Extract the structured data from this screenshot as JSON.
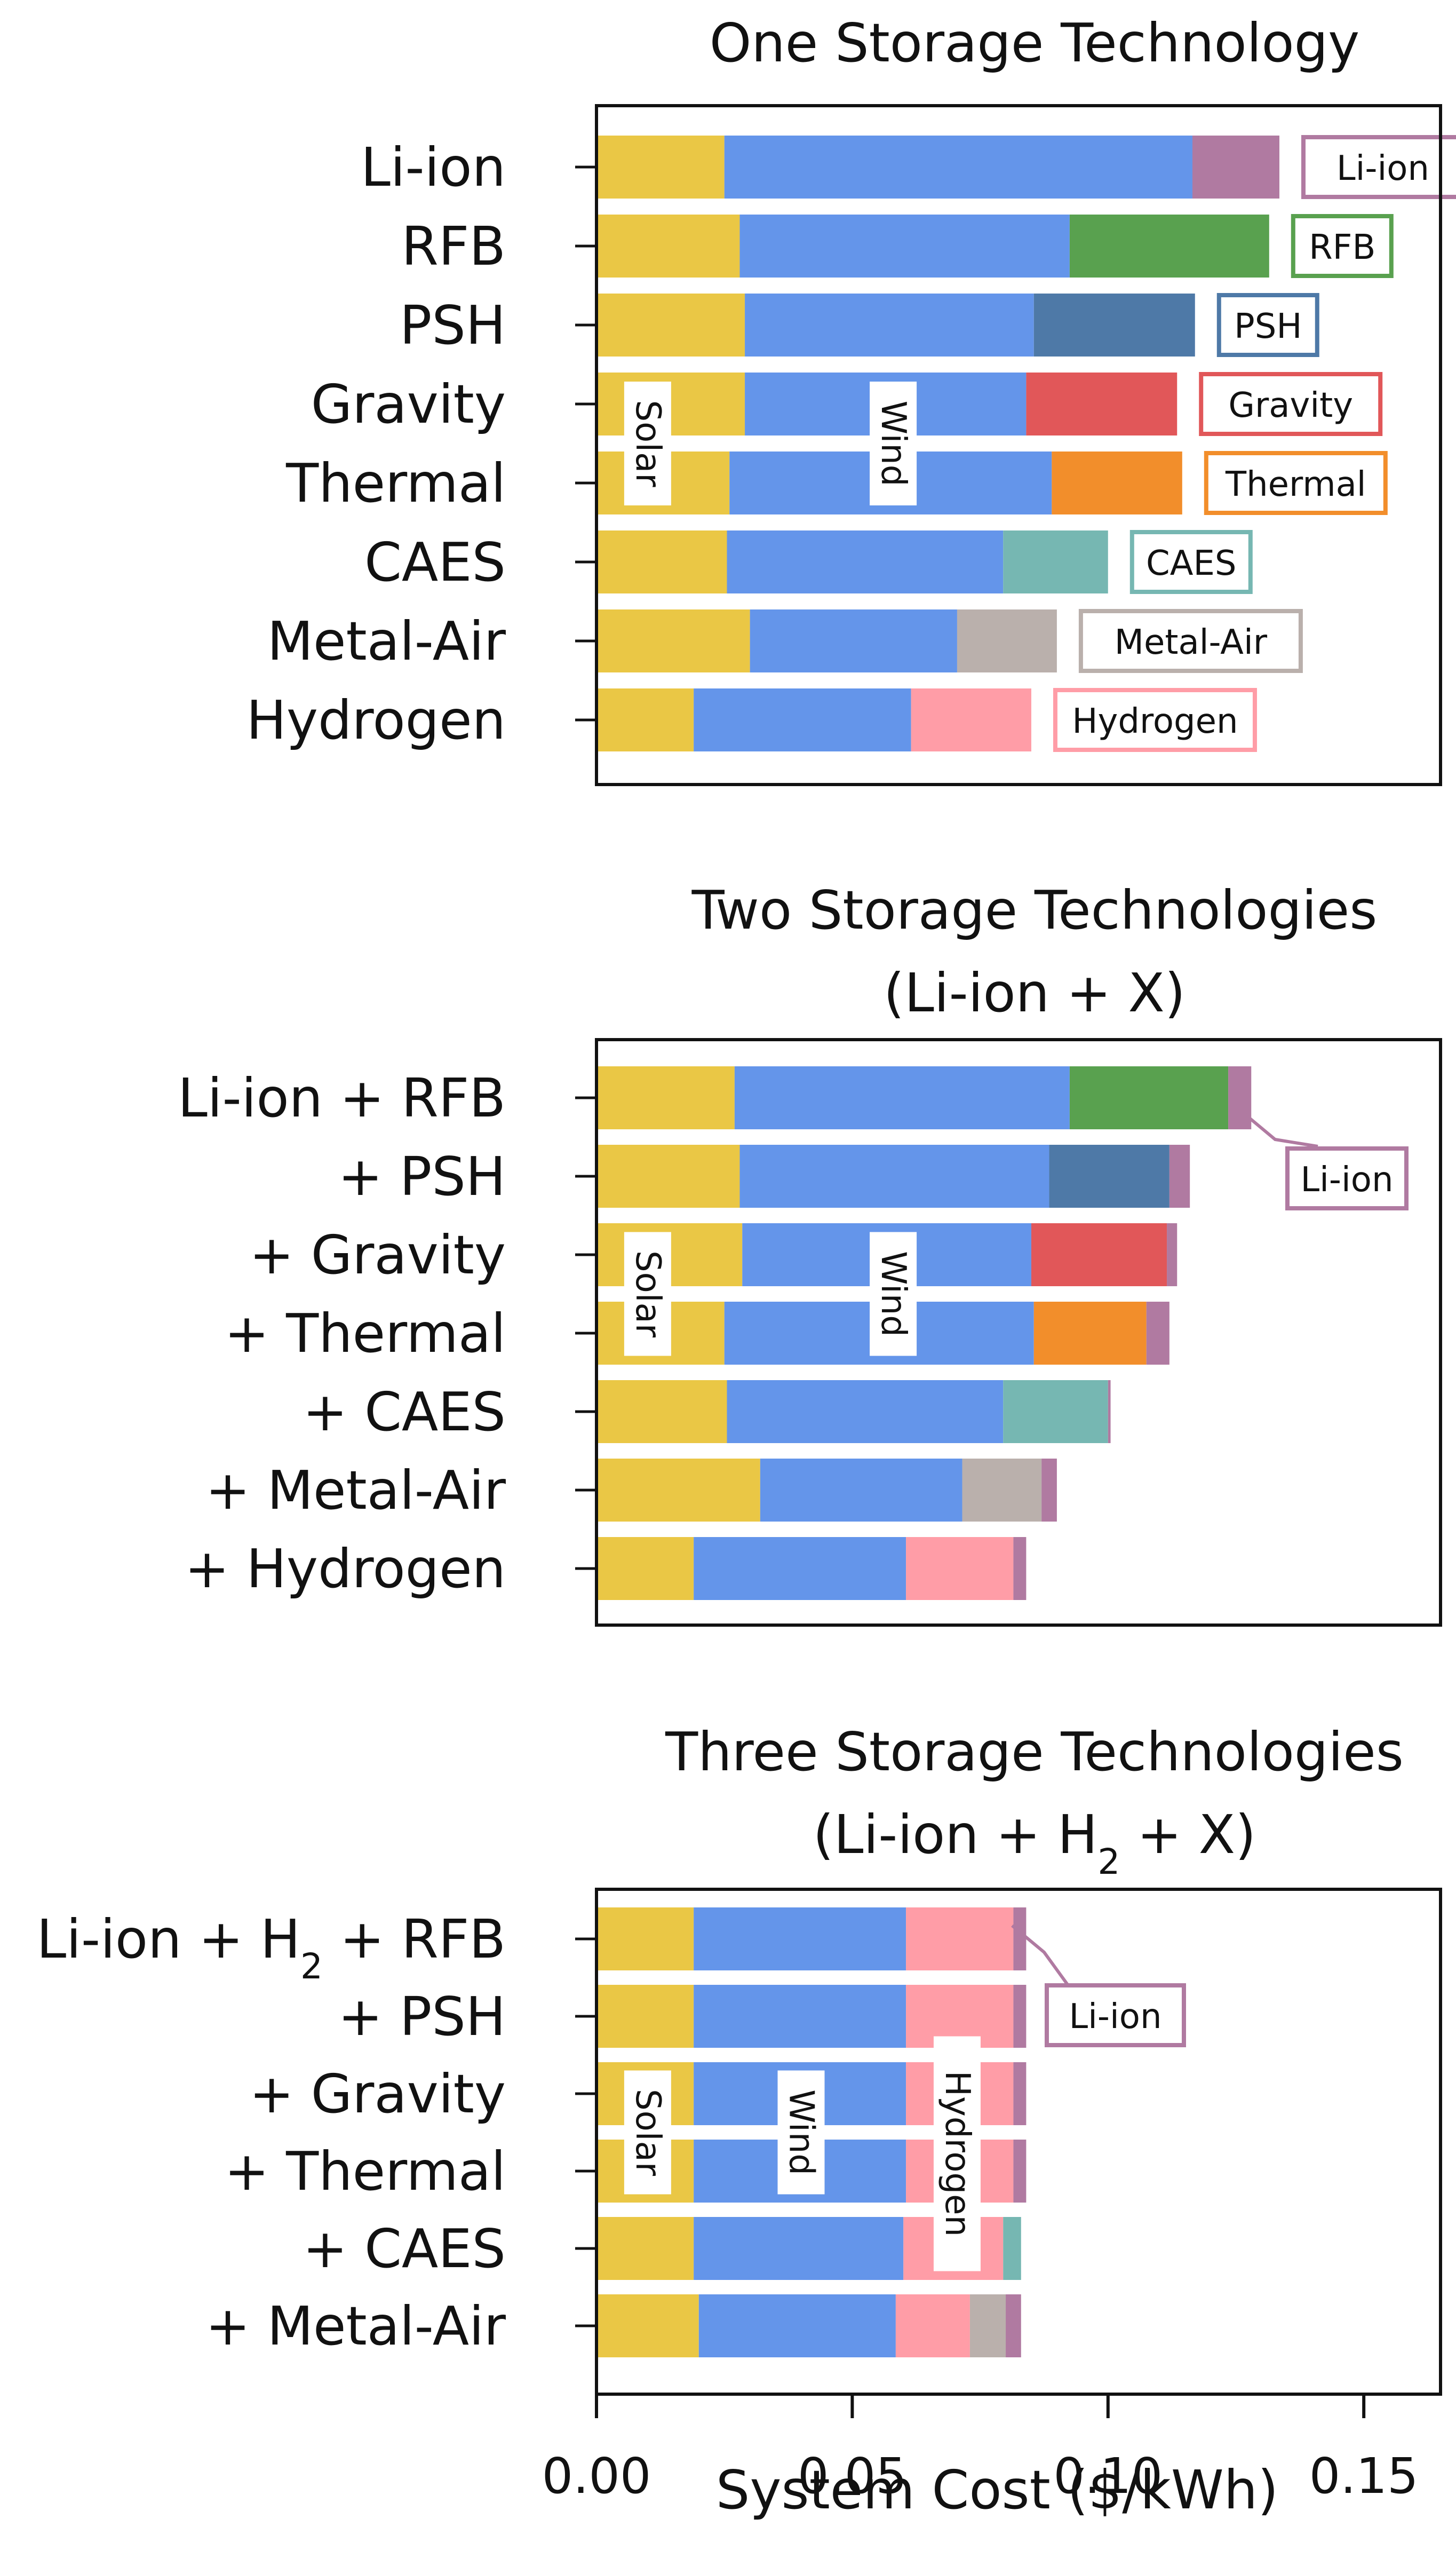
{
  "chart_data": [
    {
      "type": "bar",
      "orientation": "horizontal",
      "stacked": true,
      "title": "One Storage Technology",
      "categories": [
        "Li-ion",
        "RFB",
        "PSH",
        "Gravity",
        "Thermal",
        "CAES",
        "Metal-Air",
        "Hydrogen"
      ],
      "segments": [
        {
          "category": "Li-ion",
          "parts": [
            {
              "name": "Solar",
              "value": 0.025
            },
            {
              "name": "Wind",
              "value": 0.0915
            },
            {
              "name": "Li-ion",
              "value": 0.017
            }
          ]
        },
        {
          "category": "RFB",
          "parts": [
            {
              "name": "Solar",
              "value": 0.028
            },
            {
              "name": "Wind",
              "value": 0.0645
            },
            {
              "name": "RFB",
              "value": 0.039
            }
          ]
        },
        {
          "category": "PSH",
          "parts": [
            {
              "name": "Solar",
              "value": 0.029
            },
            {
              "name": "Wind",
              "value": 0.0565
            },
            {
              "name": "PSH",
              "value": 0.0315
            }
          ]
        },
        {
          "category": "Gravity",
          "parts": [
            {
              "name": "Solar",
              "value": 0.029
            },
            {
              "name": "Wind",
              "value": 0.055
            },
            {
              "name": "Gravity",
              "value": 0.0295
            }
          ]
        },
        {
          "category": "Thermal",
          "parts": [
            {
              "name": "Solar",
              "value": 0.026
            },
            {
              "name": "Wind",
              "value": 0.063
            },
            {
              "name": "Thermal",
              "value": 0.0255
            }
          ]
        },
        {
          "category": "CAES",
          "parts": [
            {
              "name": "Solar",
              "value": 0.0255
            },
            {
              "name": "Wind",
              "value": 0.054
            },
            {
              "name": "CAES",
              "value": 0.0205
            }
          ]
        },
        {
          "category": "Metal-Air",
          "parts": [
            {
              "name": "Solar",
              "value": 0.03
            },
            {
              "name": "Wind",
              "value": 0.0405
            },
            {
              "name": "Metal-Air",
              "value": 0.0195
            }
          ]
        },
        {
          "category": "Hydrogen",
          "parts": [
            {
              "name": "Solar",
              "value": 0.019
            },
            {
              "name": "Wind",
              "value": 0.0425
            },
            {
              "name": "Hydrogen",
              "value": 0.0235
            }
          ]
        }
      ],
      "tags": [
        "Li-ion",
        "RFB",
        "PSH",
        "Gravity",
        "Thermal",
        "CAES",
        "Metal-Air",
        "Hydrogen"
      ],
      "inbar_labels": [
        "Solar",
        "Wind"
      ]
    },
    {
      "type": "bar",
      "orientation": "horizontal",
      "stacked": true,
      "title": "Two Storage Technologies",
      "subtitle": "(Li-ion + X)",
      "categories": [
        "Li-ion + RFB",
        "+ PSH",
        "+ Gravity",
        "+ Thermal",
        "+ CAES",
        "+ Metal-Air",
        "+ Hydrogen"
      ],
      "segments": [
        {
          "category": "Li-ion + RFB",
          "parts": [
            {
              "name": "Solar",
              "value": 0.027
            },
            {
              "name": "Wind",
              "value": 0.0655
            },
            {
              "name": "RFB",
              "value": 0.031
            },
            {
              "name": "Li-ion",
              "value": 0.0045
            }
          ]
        },
        {
          "category": "+ PSH",
          "parts": [
            {
              "name": "Solar",
              "value": 0.028
            },
            {
              "name": "Wind",
              "value": 0.0605
            },
            {
              "name": "PSH",
              "value": 0.0235
            },
            {
              "name": "Li-ion",
              "value": 0.004
            }
          ]
        },
        {
          "category": "+ Gravity",
          "parts": [
            {
              "name": "Solar",
              "value": 0.0285
            },
            {
              "name": "Wind",
              "value": 0.0565
            },
            {
              "name": "Gravity",
              "value": 0.0265
            },
            {
              "name": "Li-ion",
              "value": 0.002
            }
          ]
        },
        {
          "category": "+ Thermal",
          "parts": [
            {
              "name": "Solar",
              "value": 0.025
            },
            {
              "name": "Wind",
              "value": 0.0605
            },
            {
              "name": "Thermal",
              "value": 0.022
            },
            {
              "name": "Li-ion",
              "value": 0.0045
            }
          ]
        },
        {
          "category": "+ CAES",
          "parts": [
            {
              "name": "Solar",
              "value": 0.0255
            },
            {
              "name": "Wind",
              "value": 0.054
            },
            {
              "name": "CAES",
              "value": 0.0205
            },
            {
              "name": "Li-ion",
              "value": 0.0005
            }
          ]
        },
        {
          "category": "+ Metal-Air",
          "parts": [
            {
              "name": "Solar",
              "value": 0.032
            },
            {
              "name": "Wind",
              "value": 0.0395
            },
            {
              "name": "Metal-Air",
              "value": 0.0155
            },
            {
              "name": "Li-ion",
              "value": 0.003
            }
          ]
        },
        {
          "category": "+ Hydrogen",
          "parts": [
            {
              "name": "Solar",
              "value": 0.019
            },
            {
              "name": "Wind",
              "value": 0.0415
            },
            {
              "name": "Hydrogen",
              "value": 0.021
            },
            {
              "name": "Li-ion",
              "value": 0.0025
            }
          ]
        }
      ],
      "callout": "Li-ion",
      "inbar_labels": [
        "Solar",
        "Wind"
      ]
    },
    {
      "type": "bar",
      "orientation": "horizontal",
      "stacked": true,
      "title": "Three Storage Technologies",
      "subtitle": "(Li-ion + H2 + X)",
      "categories": [
        "Li-ion + H2 + RFB",
        "+ PSH",
        "+ Gravity",
        "+ Thermal",
        "+ CAES",
        "+ Metal-Air"
      ],
      "segments": [
        {
          "category": "Li-ion + H2 + RFB",
          "parts": [
            {
              "name": "Solar",
              "value": 0.019
            },
            {
              "name": "Wind",
              "value": 0.0415
            },
            {
              "name": "Hydrogen",
              "value": 0.021
            },
            {
              "name": "RFB",
              "value": 0.0
            },
            {
              "name": "Li-ion",
              "value": 0.0025
            }
          ]
        },
        {
          "category": "+ PSH",
          "parts": [
            {
              "name": "Solar",
              "value": 0.019
            },
            {
              "name": "Wind",
              "value": 0.0415
            },
            {
              "name": "Hydrogen",
              "value": 0.021
            },
            {
              "name": "PSH",
              "value": 0.0
            },
            {
              "name": "Li-ion",
              "value": 0.0025
            }
          ]
        },
        {
          "category": "+ Gravity",
          "parts": [
            {
              "name": "Solar",
              "value": 0.019
            },
            {
              "name": "Wind",
              "value": 0.0415
            },
            {
              "name": "Hydrogen",
              "value": 0.021
            },
            {
              "name": "Gravity",
              "value": 0.0
            },
            {
              "name": "Li-ion",
              "value": 0.0025
            }
          ]
        },
        {
          "category": "+ Thermal",
          "parts": [
            {
              "name": "Solar",
              "value": 0.019
            },
            {
              "name": "Wind",
              "value": 0.0415
            },
            {
              "name": "Hydrogen",
              "value": 0.021
            },
            {
              "name": "Thermal",
              "value": 0.0
            },
            {
              "name": "Li-ion",
              "value": 0.0025
            }
          ]
        },
        {
          "category": "+ CAES",
          "parts": [
            {
              "name": "Solar",
              "value": 0.019
            },
            {
              "name": "Wind",
              "value": 0.041
            },
            {
              "name": "Hydrogen",
              "value": 0.0195
            },
            {
              "name": "CAES",
              "value": 0.0035
            },
            {
              "name": "Li-ion",
              "value": 0.0
            }
          ]
        },
        {
          "category": "+ Metal-Air",
          "parts": [
            {
              "name": "Solar",
              "value": 0.02
            },
            {
              "name": "Wind",
              "value": 0.0385
            },
            {
              "name": "Hydrogen",
              "value": 0.0145
            },
            {
              "name": "Metal-Air",
              "value": 0.007
            },
            {
              "name": "Li-ion",
              "value": 0.003
            }
          ]
        }
      ],
      "callout": "Li-ion",
      "inbar_labels": [
        "Solar",
        "Wind",
        "Hydrogen"
      ]
    }
  ],
  "x_axis": {
    "label": "System Cost ($/kWh)",
    "ticks": [
      0.0,
      0.05,
      0.1,
      0.15
    ],
    "tick_labels": [
      "0.00",
      "0.05",
      "0.10",
      "0.15"
    ],
    "xlim": [
      0,
      0.165
    ]
  },
  "colors": {
    "Solar": "#EAC745",
    "Wind": "#6495EA",
    "Li-ion": "#B07AA1",
    "RFB": "#59A14F",
    "PSH": "#4E79A7",
    "Gravity": "#E15759",
    "Thermal": "#F28E2B",
    "CAES": "#76B7B2",
    "Metal-Air": "#BAB0AC",
    "Hydrogen": "#FF9DA7"
  }
}
